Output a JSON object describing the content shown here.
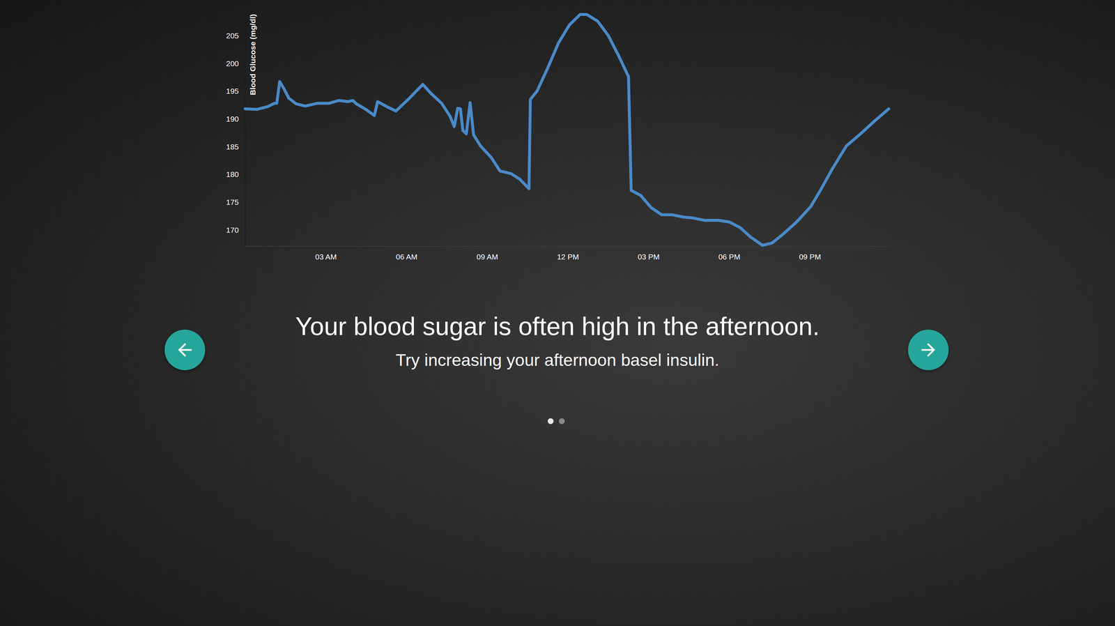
{
  "chart_data": {
    "type": "line",
    "title": "Your blood sugar is often high in the afternoon.",
    "subtitle": "Try increasing your afternoon basel insulin.",
    "y_label": "Blood Glucose (mg/dl)",
    "color": "#4a8ac8",
    "x": [
      0,
      0.43,
      0.83,
      1.09,
      1.17,
      1.28,
      1.44,
      1.62,
      1.89,
      2.23,
      2.68,
      3.12,
      3.47,
      3.81,
      4.0,
      4.13,
      4.45,
      4.8,
      4.92,
      5.26,
      5.6,
      6.1,
      6.6,
      6.9,
      7.3,
      7.61,
      7.77,
      7.9,
      8.0,
      8.09,
      8.22,
      8.36,
      8.49,
      8.75,
      9.15,
      9.47,
      9.89,
      10.21,
      10.55,
      10.6,
      10.85,
      11.25,
      11.65,
      12.05,
      12.45,
      12.7,
      13.1,
      13.5,
      13.9,
      14.25,
      14.35,
      14.7,
      15.09,
      15.49,
      15.88,
      16.28,
      16.68,
      17.07,
      17.6,
      18.0,
      18.4,
      18.79,
      19.23,
      19.58,
      19.97,
      20.5,
      21.03,
      21.42,
      21.82,
      22.35,
      22.88,
      23.4,
      23.93
    ],
    "values": [
      191.8,
      191.7,
      192.2,
      192.8,
      192.8,
      196.7,
      195.4,
      193.7,
      192.7,
      192.3,
      192.8,
      192.8,
      193.3,
      193.1,
      193.3,
      192.7,
      191.8,
      190.6,
      193.1,
      192.2,
      191.4,
      193.7,
      196.2,
      194.6,
      192.8,
      190.5,
      188.6,
      191.9,
      191.8,
      187.9,
      187.3,
      192.9,
      187.1,
      185.1,
      183.0,
      180.6,
      180.1,
      179.1,
      177.4,
      193.5,
      195.0,
      199.2,
      203.7,
      206.9,
      208.8,
      208.8,
      207.6,
      205.0,
      201.2,
      197.6,
      177.1,
      176.2,
      174.0,
      172.7,
      172.7,
      172.3,
      172.1,
      171.7,
      171.7,
      171.4,
      170.4,
      168.7,
      167.2,
      167.6,
      169.1,
      171.4,
      174.2,
      177.4,
      180.9,
      185.1,
      187.3,
      189.6,
      191.8
    ],
    "xlim": [
      0,
      24
    ],
    "xticks": [
      {
        "value": 3,
        "label": "03 AM"
      },
      {
        "value": 6,
        "label": "06 AM"
      },
      {
        "value": 9,
        "label": "09 AM"
      },
      {
        "value": 12,
        "label": "12 PM"
      },
      {
        "value": 15,
        "label": "03 PM"
      },
      {
        "value": 18,
        "label": "06 PM"
      },
      {
        "value": 21,
        "label": "09 PM"
      }
    ],
    "ylim": [
      167,
      209
    ],
    "yticks": [
      170,
      175,
      180,
      185,
      190,
      195,
      200,
      205
    ],
    "grid": false
  }
}
